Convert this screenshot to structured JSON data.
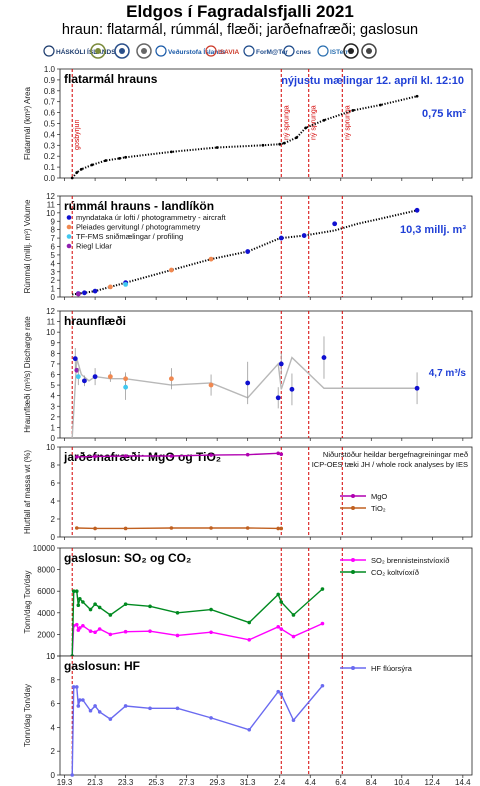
{
  "header": {
    "title": "Eldgos í Fagradalsfjalli 2021",
    "subtitle": "hraun: flatarmál, rúmmál, flæði; jarðefnafræði; gaslosun"
  },
  "logos": [
    {
      "name": "hi-logo",
      "text": "HÁSKÓLI ÍSLANDS",
      "color": "#1d3c6e"
    },
    {
      "name": "ni-logo",
      "text": "",
      "color": "#7a8a3a"
    },
    {
      "name": "lmi-logo",
      "text": "",
      "color": "#2a4f8a"
    },
    {
      "name": "ufr-logo",
      "text": "",
      "color": "#666"
    },
    {
      "name": "vedur-logo",
      "text": "Veðurstofa Íslands",
      "color": "#1a5aa8"
    },
    {
      "name": "isavia-logo",
      "text": "ISAVIA",
      "color": "#cc3a2a"
    },
    {
      "name": "formatter-logo",
      "text": "ForM@Ter",
      "color": "#1d4a8a"
    },
    {
      "name": "cnes-logo",
      "text": "cnes",
      "color": "#1d4a8a"
    },
    {
      "name": "isterre-logo",
      "text": "ISTerre",
      "color": "#2a6fb0"
    },
    {
      "name": "lmv-logo",
      "text": "",
      "color": "#222"
    },
    {
      "name": "seal-logo",
      "text": "",
      "color": "#444"
    }
  ],
  "x_axis": {
    "range": [
      19,
      46
    ],
    "ticks": [
      19.3,
      21.3,
      23.3,
      25.3,
      27.3,
      29.3,
      31.3,
      2.4,
      4.4,
      6.4,
      8.4,
      10.4,
      12.4,
      14.4
    ],
    "tick_labels": [
      "19.3",
      "21.3",
      "23.3",
      "25.3",
      "27.3",
      "29.3",
      "31.3",
      "2.4",
      "4.4",
      "6.4",
      "8.4",
      "10.4",
      "12.4",
      "14.4"
    ]
  },
  "events": [
    {
      "x": 19.8,
      "label": "gosbyrjun"
    },
    {
      "x": 33.5,
      "label": "ný sprunga"
    },
    {
      "x": 35.3,
      "label": "ný sprunga"
    },
    {
      "x": 37.5,
      "label": "ný sprunga"
    }
  ],
  "chart_data": [
    {
      "type": "line",
      "title": "flatarmál hrauns",
      "ylabel": "Flatarmál (km²) Area",
      "ylim": [
        0,
        1
      ],
      "yticks": [
        0,
        0.1,
        0.2,
        0.3,
        0.4,
        0.5,
        0.6,
        0.7,
        0.8,
        0.9,
        1.0
      ],
      "ytick_labels": [
        "0.0",
        "0.1",
        "0.2",
        "0.3",
        "0.4",
        "0.5",
        "0.6",
        "0.7",
        "0.8",
        "0.9",
        "1.0"
      ],
      "annotations": [
        "nýjustu mælingar 12. apríl kl. 12:10",
        "0,75 km²"
      ],
      "series": [
        {
          "color": "#000000",
          "style": "dotted",
          "marker": "black",
          "x": [
            19.8,
            20.1,
            20.4,
            21.1,
            22.0,
            22.9,
            23.3,
            26.3,
            29.3,
            32.3,
            33.4,
            33.7,
            34.5,
            35.1,
            36.3,
            38.2,
            40.0,
            42.4
          ],
          "y": [
            0.0,
            0.05,
            0.08,
            0.12,
            0.16,
            0.18,
            0.19,
            0.24,
            0.28,
            0.3,
            0.31,
            0.32,
            0.37,
            0.46,
            0.53,
            0.62,
            0.67,
            0.75
          ]
        }
      ]
    },
    {
      "type": "line",
      "title": "rúmmál hrauns - landlíkön",
      "ylabel": "Rúmmál (millj. m³) Volume",
      "ylim": [
        0,
        12
      ],
      "yticks": [
        0,
        1,
        2,
        3,
        4,
        5,
        6,
        7,
        8,
        9,
        10,
        11,
        12
      ],
      "ytick_labels": [
        "0",
        "1",
        "2",
        "3",
        "4",
        "5",
        "6",
        "7",
        "8",
        "9",
        "10",
        "11",
        "12"
      ],
      "annotations": [
        "10,3 millj. m³"
      ],
      "legend": [
        {
          "label": "myndataka úr lofti  /  photogrammetry - aircraft",
          "color": "#1010d0"
        },
        {
          "label": "Pleiades gervitungl  /  photogrammetry",
          "color": "#f08850"
        },
        {
          "label": "TF-FMS sniðmælingar  /  profiling",
          "color": "#40c8f0"
        },
        {
          "label": "Riegl Lidar",
          "color": "#9020b0"
        }
      ],
      "series": [
        {
          "name": "trend",
          "color": "#000000",
          "style": "dotted",
          "x": [
            19.8,
            20.2,
            20.6,
            21.3,
            22.3,
            23.3,
            26.3,
            28.9,
            31.3,
            33.3,
            33.5,
            35.0,
            37.0,
            38.5,
            40.0,
            42.4
          ],
          "y": [
            0.3,
            0.4,
            0.5,
            0.7,
            1.2,
            1.7,
            3.2,
            4.5,
            5.4,
            6.9,
            7.0,
            7.3,
            7.9,
            8.7,
            9.3,
            10.3
          ]
        }
      ],
      "points": [
        {
          "x": 20.2,
          "y": 0.4,
          "group": 0
        },
        {
          "x": 20.6,
          "y": 0.5,
          "group": 0
        },
        {
          "x": 21.3,
          "y": 0.7,
          "group": 0
        },
        {
          "x": 23.3,
          "y": 1.7,
          "group": 0
        },
        {
          "x": 31.3,
          "y": 5.4,
          "group": 0
        },
        {
          "x": 33.5,
          "y": 7.0,
          "group": 0
        },
        {
          "x": 35.0,
          "y": 7.3,
          "group": 0
        },
        {
          "x": 37.0,
          "y": 8.7,
          "group": 0
        },
        {
          "x": 42.4,
          "y": 10.3,
          "group": 0
        },
        {
          "x": 22.3,
          "y": 1.2,
          "group": 1
        },
        {
          "x": 26.3,
          "y": 3.2,
          "group": 1
        },
        {
          "x": 28.9,
          "y": 4.5,
          "group": 1
        },
        {
          "x": 23.3,
          "y": 1.5,
          "group": 2
        },
        {
          "x": 20.2,
          "y": 0.35,
          "group": 3
        }
      ]
    },
    {
      "type": "line",
      "title": "hraunflæði",
      "ylabel": "Hraunflæði (m³/s) Discharge rate",
      "ylim": [
        0,
        12
      ],
      "yticks": [
        0,
        1,
        2,
        3,
        4,
        5,
        6,
        7,
        8,
        9,
        10,
        11,
        12
      ],
      "ytick_labels": [
        "0",
        "1",
        "2",
        "3",
        "4",
        "5",
        "6",
        "7",
        "8",
        "9",
        "10",
        "11",
        "12"
      ],
      "annotations": [
        "4,7 m³/s"
      ],
      "series": [
        {
          "color": "#b8b8b8",
          "style": "solid",
          "x": [
            19.8,
            20.1,
            20.4,
            20.9,
            21.3,
            22.3,
            23.3,
            26.3,
            28.9,
            31.3,
            33.3,
            33.5,
            34.2,
            36.3,
            38.2,
            42.4
          ],
          "y": [
            0,
            7.5,
            6.0,
            5.4,
            5.8,
            5.6,
            5.6,
            5.0,
            5.2,
            3.8,
            7.0,
            4.6,
            7.6,
            4.7,
            4.7,
            4.7
          ]
        }
      ],
      "points": [
        {
          "x": 20.0,
          "y": 7.5,
          "color": "#1010d0",
          "err": 1.0
        },
        {
          "x": 20.1,
          "y": 6.4,
          "color": "#9020b0",
          "err": 0.0
        },
        {
          "x": 20.2,
          "y": 5.8,
          "color": "#40c8f0",
          "err": 0.8
        },
        {
          "x": 20.6,
          "y": 5.4,
          "color": "#1010d0",
          "err": 0.5
        },
        {
          "x": 21.3,
          "y": 5.8,
          "color": "#1010d0",
          "err": 0.8
        },
        {
          "x": 22.3,
          "y": 5.8,
          "color": "#f08850",
          "err": 0.5
        },
        {
          "x": 23.3,
          "y": 4.8,
          "color": "#40c8f0",
          "err": 1.2
        },
        {
          "x": 23.3,
          "y": 5.6,
          "color": "#f08850",
          "err": 0.6
        },
        {
          "x": 26.3,
          "y": 5.6,
          "color": "#f08850",
          "err": 1.0
        },
        {
          "x": 28.9,
          "y": 5.0,
          "color": "#f08850",
          "err": 1.0
        },
        {
          "x": 31.3,
          "y": 5.2,
          "color": "#1010d0",
          "err": 2.0
        },
        {
          "x": 33.3,
          "y": 3.8,
          "color": "#1010d0",
          "err": 1.0
        },
        {
          "x": 33.5,
          "y": 7.0,
          "color": "#1010d0",
          "err": 1.0
        },
        {
          "x": 34.2,
          "y": 4.6,
          "color": "#1010d0",
          "err": 1.5
        },
        {
          "x": 36.3,
          "y": 7.6,
          "color": "#1010d0",
          "err": 2.0
        },
        {
          "x": 42.4,
          "y": 4.7,
          "color": "#1010d0",
          "err": 1.5
        }
      ]
    },
    {
      "type": "line",
      "title": "jarðefnafræði: MgO og TiO₂",
      "ylabel": "Hlutfall af massa wt (%)",
      "ylim": [
        0,
        10
      ],
      "yticks": [
        0,
        2,
        4,
        6,
        8,
        10
      ],
      "ytick_labels": [
        "0",
        "2",
        "4",
        "6",
        "8",
        "10"
      ],
      "annotations": [
        "Niðurstöður heildar bergefnagreiningar með",
        "ICP-OES tæki JH / whole rock analyses by IES"
      ],
      "legend": [
        {
          "label": "MgO",
          "color": "#b000b0"
        },
        {
          "label": "TiO₂",
          "color": "#c06020"
        }
      ],
      "series": [
        {
          "name": "MgO",
          "color": "#b000b0",
          "style": "solid",
          "x": [
            20.1,
            21.3,
            23.3,
            26.3,
            28.9,
            31.3,
            33.3,
            33.5
          ],
          "y": [
            8.9,
            8.95,
            9.0,
            9.0,
            9.1,
            9.15,
            9.3,
            9.2
          ]
        },
        {
          "name": "TiO₂",
          "color": "#c06020",
          "style": "solid",
          "x": [
            20.1,
            21.3,
            23.3,
            26.3,
            28.9,
            31.3,
            33.3,
            33.5
          ],
          "y": [
            1.0,
            0.95,
            0.95,
            1.0,
            1.0,
            1.0,
            0.95,
            0.95
          ]
        }
      ]
    },
    {
      "type": "line",
      "title": "gaslosun: SO₂ og CO₂",
      "ylabel": "Tonn/dag Ton/day",
      "ylim": [
        0,
        10000
      ],
      "yticks": [
        0,
        2000,
        4000,
        6000,
        8000,
        10000
      ],
      "ytick_labels": [
        "0",
        "2000",
        "4000",
        "6000",
        "8000",
        "10000"
      ],
      "legend": [
        {
          "label": "SO₂ brennisteinstvíoxíð",
          "color": "#ff00ff"
        },
        {
          "label": "CO₂ koltvíoxíð",
          "color": "#008a20"
        }
      ],
      "series": [
        {
          "name": "SO₂",
          "color": "#ff00ff",
          "style": "solid",
          "x": [
            19.8,
            19.9,
            20.1,
            20.2,
            20.3,
            20.5,
            21.0,
            21.3,
            21.6,
            22.3,
            23.3,
            24.9,
            26.7,
            28.9,
            31.4,
            33.3,
            33.5,
            34.3,
            36.2
          ],
          "y": [
            0,
            2800,
            2900,
            2400,
            2600,
            2800,
            2300,
            2200,
            2500,
            2000,
            2250,
            2300,
            1900,
            2200,
            1500,
            2700,
            2500,
            1800,
            3000
          ]
        },
        {
          "name": "CO₂",
          "color": "#008a20",
          "style": "solid",
          "x": [
            19.8,
            19.9,
            20.1,
            20.2,
            20.3,
            20.5,
            21.0,
            21.3,
            21.6,
            22.3,
            23.3,
            24.9,
            26.7,
            28.9,
            31.4,
            33.3,
            33.5,
            34.3,
            36.2
          ],
          "y": [
            0,
            6000,
            6000,
            4700,
            5300,
            5000,
            4300,
            4800,
            4500,
            3800,
            4800,
            4600,
            4000,
            4300,
            3100,
            5700,
            5000,
            3800,
            6200
          ]
        }
      ]
    },
    {
      "type": "line",
      "title": "gaslosun: HF",
      "ylabel": "Tonn/dag Ton/day",
      "ylim": [
        0,
        10
      ],
      "yticks": [
        0,
        2,
        4,
        6,
        8,
        10
      ],
      "ytick_labels": [
        "0",
        "2",
        "4",
        "6",
        "8",
        "10"
      ],
      "legend": [
        {
          "label": "HF flúorsýra",
          "color": "#6a6af0"
        }
      ],
      "series": [
        {
          "name": "HF",
          "color": "#6a6af0",
          "style": "solid",
          "x": [
            19.8,
            19.9,
            20.1,
            20.2,
            20.3,
            20.5,
            21.0,
            21.3,
            21.6,
            22.3,
            23.3,
            24.9,
            26.7,
            28.9,
            31.4,
            33.3,
            33.5,
            34.3,
            36.2
          ],
          "y": [
            0,
            7.4,
            7.4,
            5.8,
            6.3,
            6.3,
            5.4,
            5.8,
            5.3,
            4.7,
            5.8,
            5.6,
            5.6,
            4.8,
            3.8,
            7.0,
            6.8,
            4.6,
            7.5
          ]
        }
      ]
    }
  ]
}
